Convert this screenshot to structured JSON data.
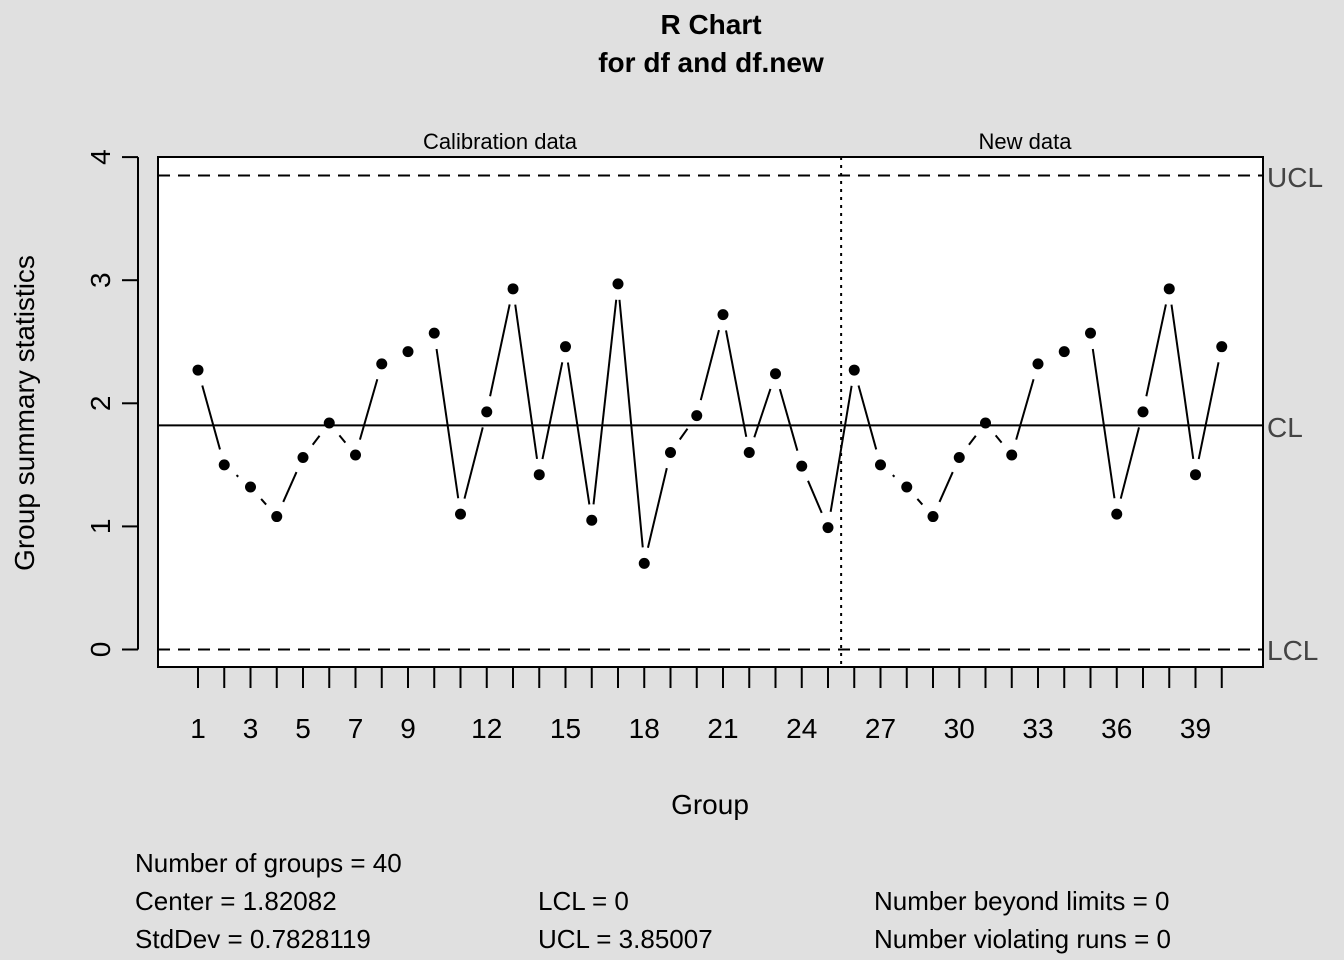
{
  "chart_data": {
    "type": "line",
    "title": "R Chart",
    "subtitle": "for df and df.new",
    "xlabel": "Group",
    "ylabel": "Group summary statistics",
    "ylim": [
      0,
      4
    ],
    "y_ticks": [
      "0",
      "1",
      "2",
      "3",
      "4"
    ],
    "x_tick_labels": [
      "1",
      "3",
      "5",
      "7",
      "9",
      "12",
      "15",
      "18",
      "21",
      "24",
      "27",
      "30",
      "33",
      "36",
      "39"
    ],
    "x_tick_positions": [
      1,
      3,
      5,
      7,
      9,
      12,
      15,
      18,
      21,
      24,
      27,
      30,
      33,
      36,
      39
    ],
    "section_labels": [
      "Calibration data",
      "New data"
    ],
    "calibration_groups": 25,
    "center": 1.82082,
    "lcl": 0,
    "ucl": 3.85007,
    "limit_labels": {
      "ucl": "UCL",
      "cl": "CL",
      "lcl": "LCL"
    },
    "series": [
      {
        "x": [
          1,
          2,
          3,
          4,
          5,
          6,
          7,
          8,
          9,
          10,
          11,
          12,
          13,
          14,
          15,
          16,
          17,
          18,
          19,
          20,
          21,
          22,
          23,
          24,
          25,
          26,
          27,
          28,
          29,
          30,
          31,
          32,
          33,
          34,
          35,
          36,
          37,
          38,
          39,
          40
        ],
        "values": [
          2.27,
          1.5,
          1.32,
          1.08,
          1.56,
          1.84,
          1.58,
          2.32,
          2.42,
          2.57,
          1.1,
          1.93,
          2.93,
          1.42,
          2.46,
          1.05,
          2.97,
          0.7,
          1.6,
          1.9,
          2.72,
          1.6,
          2.24,
          1.49,
          0.99,
          2.27,
          1.5,
          1.32,
          1.08,
          1.56,
          1.84,
          1.58,
          2.32,
          2.42,
          2.57,
          1.1,
          1.93,
          2.93,
          1.42,
          2.46
        ]
      }
    ]
  },
  "stats": {
    "groups": "Number of groups = 40",
    "center": "Center = 1.82082",
    "stddev": "StdDev = 0.7828119",
    "lcl": "LCL = 0",
    "ucl": "UCL = 3.85007",
    "beyond": "Number beyond limits = 0",
    "violating": "Number violating runs = 0"
  }
}
